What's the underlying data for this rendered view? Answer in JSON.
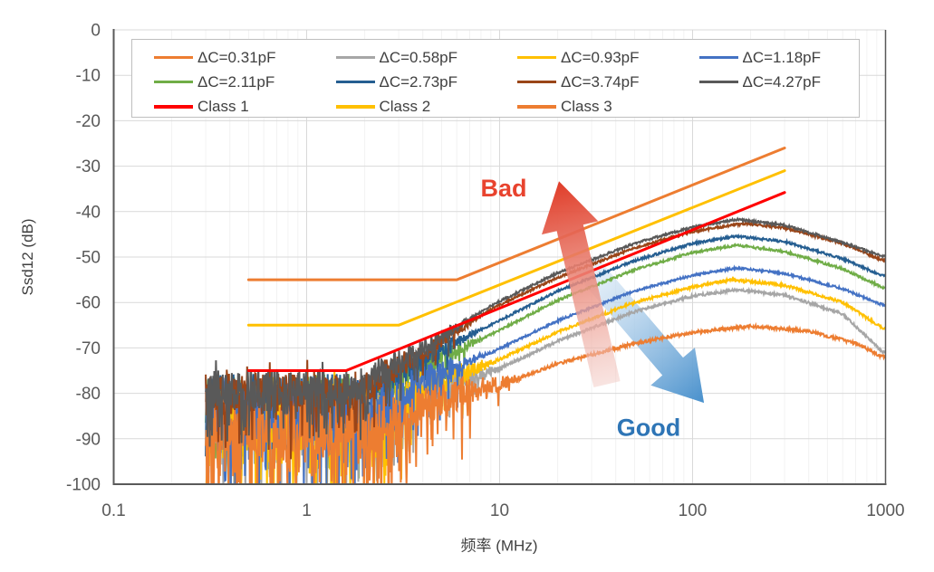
{
  "chart_data": {
    "type": "line",
    "title": "",
    "xlabel": "频率 (MHz)",
    "ylabel": "Ssd12 (dB)",
    "x_scale": "log",
    "xlim": [
      0.1,
      1000
    ],
    "ylim": [
      -100,
      0
    ],
    "x_ticks": [
      "0.1",
      "1",
      "10",
      "100",
      "1000"
    ],
    "y_ticks": [
      "0",
      "-10",
      "-20",
      "-30",
      "-40",
      "-50",
      "-60",
      "-70",
      "-80",
      "-90",
      "-100"
    ],
    "grid": true,
    "legend_position": "top-inside",
    "colors": {
      "axis": "#595959",
      "grid_major": "#D9D9D9",
      "grid_minor": "#F2F2F2",
      "tick_labels": "#595959",
      "axis_titles": "#404040",
      "legend_border": "#BFBFBF"
    },
    "series": [
      {
        "name": "ΔC=0.31pF",
        "color": "#ED7D31",
        "kind": "measured",
        "width": 2,
        "anchors": [
          [
            0.3,
            -86.5
          ],
          [
            2.8,
            -86.5
          ],
          [
            5,
            -81
          ],
          [
            9.3,
            -78.6
          ],
          [
            20,
            -73.5
          ],
          [
            50,
            -69
          ],
          [
            100,
            -66.6
          ],
          [
            200,
            -65.2
          ],
          [
            400,
            -66.3
          ],
          [
            700,
            -69
          ],
          [
            1000,
            -72.3
          ]
        ],
        "noise": {
          "amp": 8.5,
          "fade_start": 1.6,
          "fade_end": 14,
          "spike_prob": 0.48,
          "spike_depth": 20,
          "resid": 0.35,
          "seed": 101
        }
      },
      {
        "name": "ΔC=0.58pF",
        "color": "#A6A6A6",
        "kind": "measured",
        "width": 2,
        "anchors": [
          [
            0.3,
            -84.5
          ],
          [
            2.5,
            -84.5
          ],
          [
            4.5,
            -78.5
          ],
          [
            9.3,
            -75.2
          ],
          [
            20,
            -68.5
          ],
          [
            50,
            -62
          ],
          [
            100,
            -58.6
          ],
          [
            170,
            -57.2
          ],
          [
            300,
            -58.4
          ],
          [
            600,
            -62.5
          ],
          [
            1000,
            -71.5
          ]
        ],
        "noise": {
          "amp": 8,
          "fade_start": 1.5,
          "fade_end": 11,
          "spike_prob": 0.4,
          "spike_depth": 17,
          "resid": 0.3,
          "seed": 102
        }
      },
      {
        "name": "ΔC=0.93pF",
        "color": "#FFC000",
        "kind": "measured",
        "width": 2,
        "anchors": [
          [
            0.3,
            -84
          ],
          [
            2.4,
            -84
          ],
          [
            4.5,
            -77.5
          ],
          [
            9.3,
            -73.2
          ],
          [
            20,
            -66.5
          ],
          [
            50,
            -60
          ],
          [
            100,
            -56.6
          ],
          [
            160,
            -55
          ],
          [
            300,
            -56.2
          ],
          [
            600,
            -60
          ],
          [
            1000,
            -66
          ]
        ],
        "noise": {
          "amp": 8,
          "fade_start": 1.5,
          "fade_end": 10,
          "spike_prob": 0.48,
          "spike_depth": 19,
          "resid": 0.3,
          "seed": 103
        }
      },
      {
        "name": "ΔC=1.18pF",
        "color": "#4472C4",
        "kind": "measured",
        "width": 2,
        "anchors": [
          [
            0.3,
            -83
          ],
          [
            2.2,
            -83
          ],
          [
            4.5,
            -76
          ],
          [
            9.3,
            -70.8
          ],
          [
            20,
            -64
          ],
          [
            50,
            -57.5
          ],
          [
            100,
            -54
          ],
          [
            170,
            -52.4
          ],
          [
            300,
            -53.6
          ],
          [
            600,
            -57
          ],
          [
            1000,
            -60.8
          ]
        ],
        "noise": {
          "amp": 7.5,
          "fade_start": 1.5,
          "fade_end": 9,
          "spike_prob": 0.44,
          "spike_depth": 18,
          "resid": 0.25,
          "seed": 104
        }
      },
      {
        "name": "ΔC=2.11pF",
        "color": "#70AD47",
        "kind": "measured",
        "width": 2,
        "anchors": [
          [
            0.3,
            -82
          ],
          [
            2,
            -82
          ],
          [
            4,
            -74
          ],
          [
            9.3,
            -66.8
          ],
          [
            20,
            -59.5
          ],
          [
            50,
            -52.8
          ],
          [
            100,
            -49
          ],
          [
            170,
            -47.4
          ],
          [
            300,
            -48.8
          ],
          [
            600,
            -52.6
          ],
          [
            1000,
            -57
          ]
        ],
        "noise": {
          "amp": 7,
          "fade_start": 1.4,
          "fade_end": 8.5,
          "spike_prob": 0.34,
          "spike_depth": 15,
          "resid": 0.25,
          "seed": 105
        }
      },
      {
        "name": "ΔC=2.73pF",
        "color": "#255E91",
        "kind": "measured",
        "width": 2,
        "anchors": [
          [
            0.3,
            -81
          ],
          [
            1.9,
            -81
          ],
          [
            4,
            -72.5
          ],
          [
            9.3,
            -64.6
          ],
          [
            20,
            -57.5
          ],
          [
            50,
            -50.8
          ],
          [
            100,
            -47
          ],
          [
            170,
            -45.4
          ],
          [
            300,
            -46.6
          ],
          [
            600,
            -50.4
          ],
          [
            1000,
            -54.4
          ]
        ],
        "noise": {
          "amp": 6.5,
          "fade_start": 1.4,
          "fade_end": 8,
          "spike_prob": 0.32,
          "spike_depth": 14,
          "resid": 0.25,
          "seed": 106
        }
      },
      {
        "name": "ΔC=3.74pF",
        "color": "#9A4518",
        "kind": "measured",
        "width": 2,
        "anchors": [
          [
            0.3,
            -80
          ],
          [
            1.8,
            -80
          ],
          [
            4,
            -71
          ],
          [
            9.3,
            -61.2
          ],
          [
            20,
            -54.5
          ],
          [
            50,
            -48
          ],
          [
            100,
            -44.4
          ],
          [
            185,
            -42.6
          ],
          [
            300,
            -43.6
          ],
          [
            600,
            -47
          ],
          [
            1000,
            -51
          ]
        ],
        "noise": {
          "amp": 5.5,
          "fade_start": 1.3,
          "fade_end": 8,
          "spike_prob": 0.22,
          "spike_depth": 11,
          "resid": 0.25,
          "seed": 107
        }
      },
      {
        "name": "ΔC=4.27pF",
        "color": "#595959",
        "kind": "measured",
        "width": 2,
        "anchors": [
          [
            0.3,
            -79
          ],
          [
            1.7,
            -79
          ],
          [
            4,
            -70
          ],
          [
            9.3,
            -60.4
          ],
          [
            20,
            -53.5
          ],
          [
            50,
            -47
          ],
          [
            100,
            -43.4
          ],
          [
            170,
            -41.7
          ],
          [
            300,
            -43
          ],
          [
            600,
            -46.8
          ],
          [
            1000,
            -50
          ]
        ],
        "noise": {
          "amp": 5,
          "fade_start": 1.3,
          "fade_end": 7.5,
          "spike_prob": 0.32,
          "spike_depth": 12,
          "resid": 0.25,
          "seed": 108
        }
      },
      {
        "name": "Class 1",
        "color": "#FF0000",
        "kind": "limit",
        "width": 3,
        "anchors": [
          [
            0.5,
            -75
          ],
          [
            1.6,
            -75
          ],
          [
            300,
            -35.8
          ]
        ]
      },
      {
        "name": "Class 2",
        "color": "#FFC000",
        "kind": "limit",
        "width": 3,
        "anchors": [
          [
            0.5,
            -65
          ],
          [
            3,
            -65
          ],
          [
            300,
            -31
          ]
        ]
      },
      {
        "name": "Class 3",
        "color": "#ED7D31",
        "kind": "limit",
        "width": 3,
        "anchors": [
          [
            0.5,
            -55
          ],
          [
            6,
            -55
          ],
          [
            300,
            -26
          ]
        ]
      }
    ],
    "annotations": [
      {
        "kind": "arrow",
        "id": "good-arrow",
        "layer": "under",
        "from_f": 27.8,
        "from_db": -51.6,
        "to_f": 114.6,
        "to_db": -82.1,
        "tail_color": "#D8E7F5",
        "mid_color": "#A7CAE8",
        "head_color": "#4890CC",
        "shaft_w": 30,
        "head_w": 64,
        "head_len": 53
      },
      {
        "kind": "arrow",
        "id": "bad-arrow",
        "layer": "over",
        "from_f": 36,
        "from_db": -78,
        "to_f": 20.3,
        "to_db": -33.3,
        "tail_color": "#F2C9C3",
        "mid_color": "#EC9486",
        "head_color": "#E03C28",
        "shaft_w": 30,
        "head_w": 64,
        "head_len": 53
      },
      {
        "kind": "label",
        "id": "bad-label",
        "text": "Bad",
        "f": 10.5,
        "db": -34.9,
        "color": "#E8432E",
        "size": 27
      },
      {
        "kind": "label",
        "id": "good-label",
        "text": "Good",
        "f": 59.2,
        "db": -87.5,
        "color": "#2E75B6",
        "size": 27
      }
    ]
  }
}
